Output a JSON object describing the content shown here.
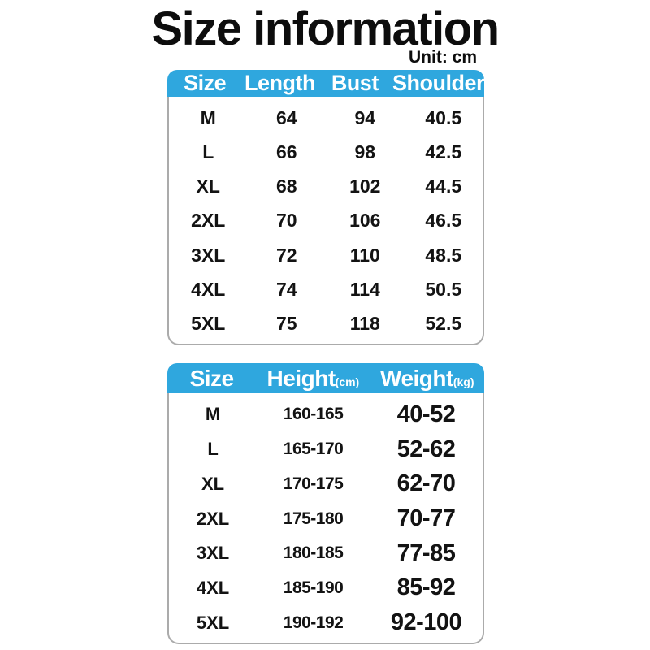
{
  "title": "Size information",
  "unit_label": "Unit: cm",
  "colors": {
    "header_blue": "#2FA7DE",
    "body_border": "#ababab",
    "header_text": "#ffffff",
    "text_dark": "#131313"
  },
  "measurement_table": {
    "columns": [
      {
        "label": "Size",
        "sub": ""
      },
      {
        "label": "Length",
        "sub": ""
      },
      {
        "label": "Bust",
        "sub": ""
      },
      {
        "label": "Shoulder",
        "sub": ""
      }
    ],
    "rows": [
      [
        "M",
        "64",
        "94",
        "40.5"
      ],
      [
        "L",
        "66",
        "98",
        "42.5"
      ],
      [
        "XL",
        "68",
        "102",
        "44.5"
      ],
      [
        "2XL",
        "70",
        "106",
        "46.5"
      ],
      [
        "3XL",
        "72",
        "110",
        "48.5"
      ],
      [
        "4XL",
        "74",
        "114",
        "50.5"
      ],
      [
        "5XL",
        "75",
        "118",
        "52.5"
      ]
    ]
  },
  "height_weight_table": {
    "columns": [
      {
        "label": "Size",
        "sub": ""
      },
      {
        "label": "Height",
        "sub": "(cm)"
      },
      {
        "label": "Weight",
        "sub": "(kg)"
      }
    ],
    "rows": [
      [
        "M",
        "160-165",
        "40-52"
      ],
      [
        "L",
        "165-170",
        "52-62"
      ],
      [
        "XL",
        "170-175",
        "62-70"
      ],
      [
        "2XL",
        "175-180",
        "70-77"
      ],
      [
        "3XL",
        "180-185",
        "77-85"
      ],
      [
        "4XL",
        "185-190",
        "85-92"
      ],
      [
        "5XL",
        "190-192",
        "92-100"
      ]
    ]
  }
}
